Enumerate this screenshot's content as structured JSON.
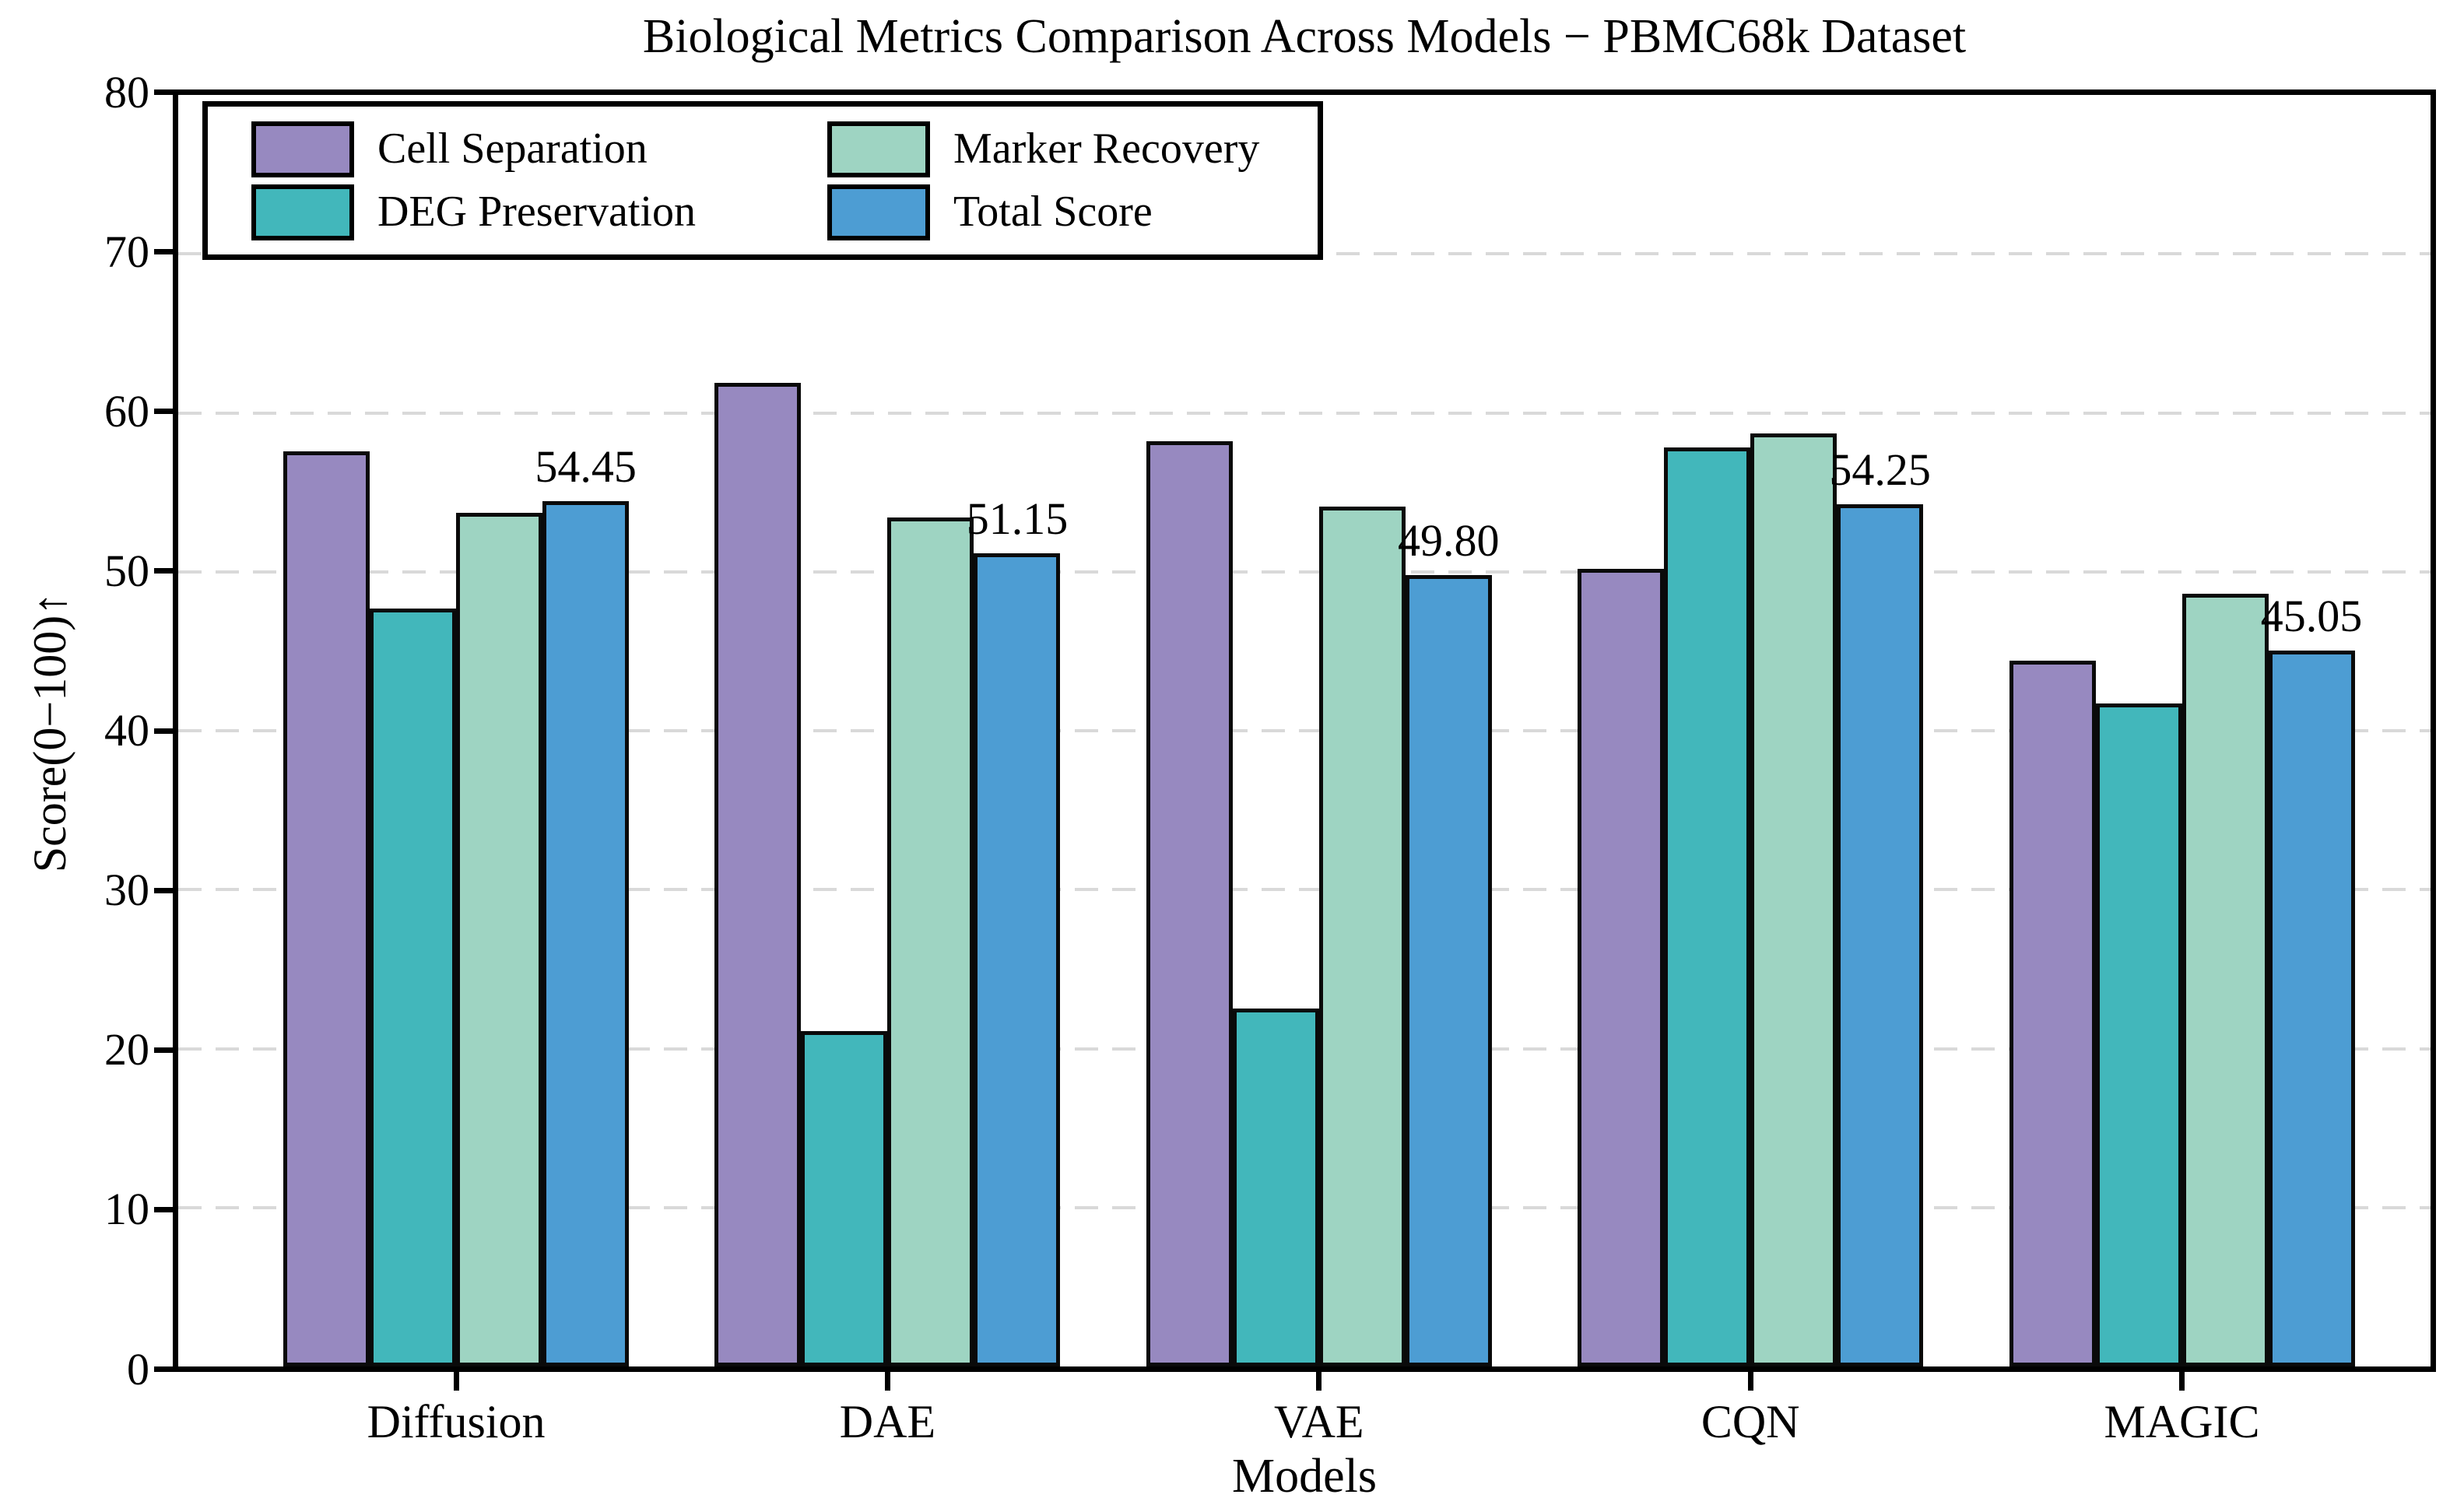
{
  "page": {
    "background": "#ffffff"
  },
  "chart_data": {
    "type": "bar",
    "title": "Biological Metrics Comparison Across Models − PBMC68k Dataset",
    "xlabel": "Models",
    "ylabel": "Score(0−100)↑",
    "categories": [
      "Diffusion",
      "DAE",
      "VAE",
      "CQN",
      "MAGIC"
    ],
    "series": [
      {
        "name": "Cell Separation",
        "color": "#9789c0",
        "values": [
          57.6,
          61.9,
          58.2,
          50.2,
          44.4
        ]
      },
      {
        "name": "DEG Preservation",
        "color": "#42b7bb",
        "values": [
          47.7,
          21.1,
          22.5,
          57.8,
          41.7
        ]
      },
      {
        "name": "Marker Recovery",
        "color": "#9ed4c2",
        "values": [
          53.7,
          53.4,
          54.1,
          58.7,
          48.6
        ]
      },
      {
        "name": "Total Score",
        "color": "#4d9dd3",
        "values": [
          54.45,
          51.15,
          49.8,
          54.25,
          45.05
        ],
        "data_labels": [
          "54.45",
          "51.15",
          "49.80",
          "54.25",
          "45.05"
        ]
      }
    ],
    "ylim": [
      0,
      80
    ],
    "yticks": [
      0,
      10,
      20,
      30,
      40,
      50,
      60,
      70,
      80
    ],
    "grid": "horizontal-dashed",
    "grid_color": "#d9d9d9",
    "bar_edge_color": "#0a0a0a",
    "legend_position": "upper-left",
    "legend_order": [
      "Cell Separation",
      "Marker Recovery",
      "DEG Preservation",
      "Total Score"
    ]
  }
}
